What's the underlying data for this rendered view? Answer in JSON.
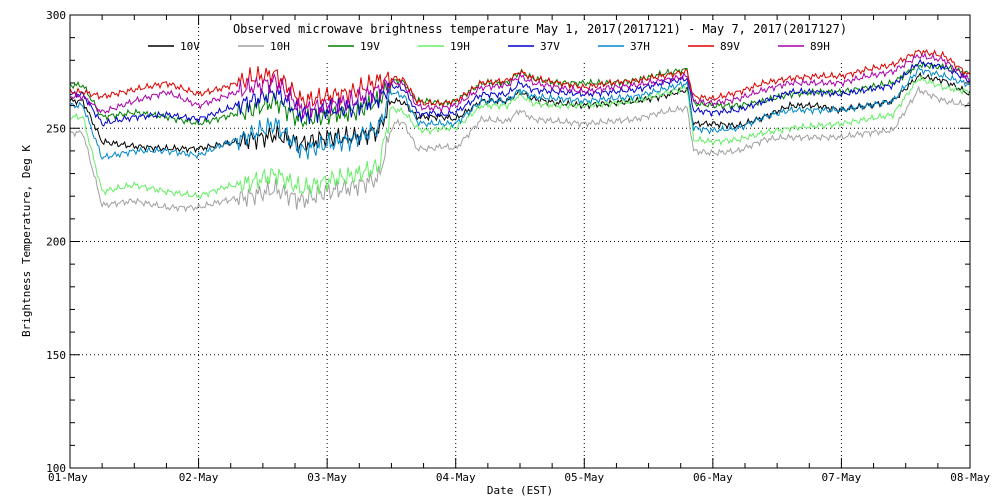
{
  "chart_data": {
    "type": "line",
    "title": "Observed microwave brightness temperature May  1, 2017(2017121) - May  7, 2017(2017127)",
    "xlabel": "Date (EST)",
    "ylabel": "Brightness Temperature, Deg K",
    "ylim": [
      100,
      300
    ],
    "xlim": [
      0,
      7
    ],
    "grid": true,
    "legend": "top",
    "y_ticks": [
      "100",
      "150",
      "200",
      "250",
      "300"
    ],
    "x_ticks": [
      "01-May",
      "02-May",
      "03-May",
      "04-May",
      "05-May",
      "06-May",
      "07-May",
      "08-May"
    ],
    "x_unit": "days since 01-May",
    "series": [
      {
        "name": "10V",
        "color": "#000000",
        "x": [
          0,
          0.1,
          0.25,
          0.5,
          0.75,
          1.0,
          1.2,
          1.4,
          1.6,
          1.8,
          2.0,
          2.2,
          2.4,
          2.5,
          2.55,
          2.6,
          2.7,
          2.75,
          2.8,
          2.9,
          3.0,
          3.2,
          3.4,
          3.5,
          3.6,
          3.8,
          4.0,
          4.2,
          4.4,
          4.6,
          4.8,
          4.85,
          5.0,
          5.2,
          5.4,
          5.6,
          5.8,
          6.0,
          6.2,
          6.4,
          6.6,
          6.8,
          7.0
        ],
        "values": [
          262,
          262,
          244,
          242,
          241,
          241,
          243,
          245,
          247,
          243,
          246,
          246,
          249,
          262,
          262,
          261,
          255,
          255,
          255,
          255,
          254,
          262,
          262,
          266,
          263,
          261,
          260,
          261,
          262,
          264,
          267,
          252,
          252,
          251,
          255,
          260,
          260,
          258,
          260,
          262,
          273,
          271,
          265
        ]
      },
      {
        "name": "10H",
        "color": "#a0a0a0",
        "x": [
          0,
          0.1,
          0.25,
          0.5,
          0.75,
          1.0,
          1.2,
          1.4,
          1.6,
          1.8,
          2.0,
          2.2,
          2.4,
          2.5,
          2.55,
          2.6,
          2.7,
          2.75,
          2.8,
          2.9,
          3.0,
          3.2,
          3.4,
          3.5,
          3.6,
          3.8,
          4.0,
          4.2,
          4.4,
          4.6,
          4.8,
          4.85,
          5.0,
          5.2,
          5.4,
          5.6,
          5.8,
          6.0,
          6.2,
          6.4,
          6.6,
          6.8,
          7.0
        ],
        "values": [
          248,
          248,
          216,
          218,
          215,
          215,
          218,
          220,
          223,
          218,
          222,
          224,
          228,
          250,
          253,
          252,
          241,
          241,
          241,
          242,
          241,
          254,
          253,
          258,
          254,
          253,
          252,
          253,
          254,
          257,
          259,
          240,
          239,
          240,
          245,
          246,
          246,
          246,
          248,
          249,
          267,
          262,
          260
        ]
      },
      {
        "name": "19V",
        "color": "#008000",
        "x": [
          0,
          0.1,
          0.25,
          0.5,
          0.75,
          1.0,
          1.2,
          1.4,
          1.6,
          1.8,
          2.0,
          2.2,
          2.4,
          2.5,
          2.55,
          2.6,
          2.7,
          2.75,
          2.8,
          2.9,
          3.0,
          3.2,
          3.4,
          3.5,
          3.6,
          3.8,
          4.0,
          4.2,
          4.4,
          4.6,
          4.8,
          4.85,
          5.0,
          5.2,
          5.4,
          5.6,
          5.8,
          6.0,
          6.2,
          6.4,
          6.6,
          6.8,
          7.0
        ],
        "values": [
          269,
          269,
          255,
          257,
          255,
          252,
          255,
          258,
          262,
          253,
          256,
          257,
          262,
          271,
          271,
          270,
          262,
          262,
          262,
          261,
          262,
          270,
          270,
          275,
          272,
          270,
          270,
          270,
          271,
          274,
          276,
          261,
          260,
          260,
          262,
          265,
          266,
          266,
          268,
          270,
          278,
          277,
          274
        ]
      },
      {
        "name": "19H",
        "color": "#66ee66",
        "x": [
          0,
          0.1,
          0.25,
          0.5,
          0.75,
          1.0,
          1.2,
          1.4,
          1.6,
          1.8,
          2.0,
          2.2,
          2.4,
          2.5,
          2.55,
          2.6,
          2.7,
          2.75,
          2.8,
          2.9,
          3.0,
          3.2,
          3.4,
          3.5,
          3.6,
          3.8,
          4.0,
          4.2,
          4.4,
          4.6,
          4.8,
          4.85,
          5.0,
          5.2,
          5.4,
          5.6,
          5.8,
          6.0,
          6.2,
          6.4,
          6.6,
          6.8,
          7.0
        ],
        "values": [
          255,
          255,
          222,
          225,
          222,
          220,
          224,
          226,
          230,
          223,
          227,
          229,
          233,
          259,
          258,
          257,
          250,
          249,
          249,
          250,
          250,
          260,
          260,
          265,
          261,
          260,
          260,
          261,
          262,
          265,
          268,
          245,
          244,
          245,
          248,
          250,
          251,
          252,
          254,
          256,
          272,
          268,
          266
        ]
      },
      {
        "name": "37V",
        "color": "#0000cc",
        "x": [
          0,
          0.1,
          0.25,
          0.5,
          0.75,
          1.0,
          1.2,
          1.4,
          1.6,
          1.8,
          2.0,
          2.2,
          2.4,
          2.5,
          2.55,
          2.6,
          2.7,
          2.75,
          2.8,
          2.9,
          3.0,
          3.2,
          3.4,
          3.5,
          3.6,
          3.8,
          4.0,
          4.2,
          4.4,
          4.6,
          4.8,
          4.85,
          5.0,
          5.2,
          5.4,
          5.6,
          5.8,
          6.0,
          6.2,
          6.4,
          6.6,
          6.8,
          7.0
        ],
        "values": [
          265,
          265,
          252,
          255,
          256,
          254,
          258,
          262,
          266,
          256,
          258,
          259,
          263,
          269,
          268,
          267,
          257,
          256,
          257,
          256,
          257,
          265,
          265,
          270,
          267,
          266,
          265,
          266,
          267,
          270,
          272,
          258,
          257,
          258,
          262,
          266,
          266,
          265,
          267,
          269,
          279,
          277,
          271
        ]
      },
      {
        "name": "37H",
        "color": "#0088cc",
        "x": [
          0,
          0.1,
          0.25,
          0.5,
          0.75,
          1.0,
          1.2,
          1.4,
          1.6,
          1.8,
          2.0,
          2.2,
          2.4,
          2.5,
          2.55,
          2.6,
          2.7,
          2.75,
          2.8,
          2.9,
          3.0,
          3.2,
          3.4,
          3.5,
          3.6,
          3.8,
          4.0,
          4.2,
          4.4,
          4.6,
          4.8,
          4.85,
          5.0,
          5.2,
          5.4,
          5.6,
          5.8,
          6.0,
          6.2,
          6.4,
          6.6,
          6.8,
          7.0
        ],
        "values": [
          260,
          260,
          237,
          240,
          240,
          238,
          243,
          247,
          252,
          240,
          243,
          245,
          250,
          266,
          265,
          264,
          253,
          252,
          252,
          252,
          252,
          262,
          262,
          267,
          264,
          263,
          262,
          263,
          264,
          267,
          270,
          250,
          249,
          250,
          255,
          258,
          258,
          258,
          260,
          262,
          276,
          273,
          269
        ]
      },
      {
        "name": "89V",
        "color": "#dd0000",
        "x": [
          0,
          0.1,
          0.25,
          0.5,
          0.75,
          1.0,
          1.2,
          1.4,
          1.6,
          1.8,
          2.0,
          2.2,
          2.4,
          2.5,
          2.55,
          2.6,
          2.7,
          2.75,
          2.8,
          2.9,
          3.0,
          3.2,
          3.4,
          3.5,
          3.6,
          3.8,
          4.0,
          4.2,
          4.4,
          4.6,
          4.8,
          4.85,
          5.0,
          5.2,
          5.4,
          5.6,
          5.8,
          6.0,
          6.2,
          6.4,
          6.6,
          6.8,
          7.0
        ],
        "values": [
          266,
          266,
          264,
          267,
          270,
          265,
          268,
          272,
          274,
          262,
          264,
          266,
          271,
          272,
          272,
          271,
          262,
          261,
          261,
          261,
          262,
          270,
          271,
          275,
          272,
          270,
          268,
          270,
          271,
          273,
          275,
          264,
          263,
          266,
          270,
          272,
          273,
          273,
          276,
          278,
          284,
          282,
          273
        ]
      },
      {
        "name": "89H",
        "color": "#aa00aa",
        "x": [
          0,
          0.1,
          0.25,
          0.5,
          0.75,
          1.0,
          1.2,
          1.4,
          1.6,
          1.8,
          2.0,
          2.2,
          2.4,
          2.5,
          2.55,
          2.6,
          2.7,
          2.75,
          2.8,
          2.9,
          3.0,
          3.2,
          3.4,
          3.5,
          3.6,
          3.8,
          4.0,
          4.2,
          4.4,
          4.6,
          4.8,
          4.85,
          5.0,
          5.2,
          5.4,
          5.6,
          5.8,
          6.0,
          6.2,
          6.4,
          6.6,
          6.8,
          7.0
        ],
        "values": [
          264,
          264,
          257,
          262,
          266,
          260,
          264,
          268,
          271,
          258,
          260,
          262,
          267,
          270,
          270,
          269,
          260,
          259,
          259,
          259,
          260,
          268,
          269,
          273,
          270,
          268,
          266,
          268,
          269,
          271,
          273,
          262,
          261,
          263,
          267,
          270,
          270,
          270,
          273,
          275,
          282,
          280,
          271
        ]
      }
    ]
  }
}
